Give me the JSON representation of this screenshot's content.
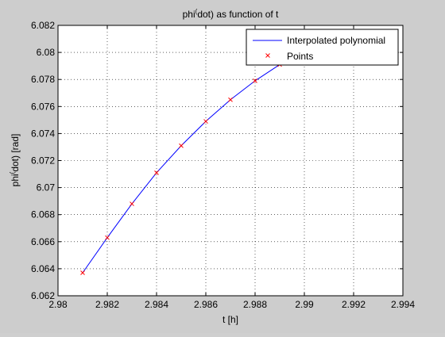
{
  "chart_data": {
    "type": "line",
    "title_main": "phi",
    "title_sup": "(",
    "title_rest": "dot) as function of t",
    "xlabel": "t [h]",
    "ylabel_main": "phi",
    "ylabel_sup": "(",
    "ylabel_rest": "dot) [rad]",
    "xlim": [
      2.98,
      2.994
    ],
    "ylim": [
      6.062,
      6.082
    ],
    "xticks": [
      2.98,
      2.982,
      2.984,
      2.986,
      2.988,
      2.99,
      2.992,
      2.994
    ],
    "yticks": [
      6.062,
      6.064,
      6.066,
      6.068,
      6.07,
      6.072,
      6.074,
      6.076,
      6.078,
      6.08,
      6.082
    ],
    "xtick_labels": [
      "2.98",
      "2.982",
      "2.984",
      "2.986",
      "2.988",
      "2.99",
      "2.992",
      "2.994"
    ],
    "ytick_labels": [
      "6.062",
      "6.064",
      "6.066",
      "6.068",
      "6.07",
      "6.072",
      "6.074",
      "6.076",
      "6.078",
      "6.08",
      "6.082"
    ],
    "grid": true,
    "legend_position": "top-right",
    "series": [
      {
        "name": "Interpolated polynomial",
        "style": "line",
        "color": "#0000ff",
        "x": [
          2.981,
          2.982,
          2.983,
          2.984,
          2.985,
          2.986,
          2.987,
          2.988,
          2.989,
          2.99
        ],
        "y": [
          6.0637,
          6.0663,
          6.0688,
          6.0711,
          6.0731,
          6.0749,
          6.0765,
          6.0779,
          6.0791,
          6.0801
        ]
      },
      {
        "name": "Points",
        "style": "marker-x",
        "color": "#ff0000",
        "x": [
          2.981,
          2.982,
          2.983,
          2.984,
          2.985,
          2.986,
          2.987,
          2.988,
          2.989
        ],
        "y": [
          6.0637,
          6.0663,
          6.0688,
          6.0711,
          6.0731,
          6.0749,
          6.0765,
          6.0779,
          6.0791
        ]
      }
    ]
  }
}
